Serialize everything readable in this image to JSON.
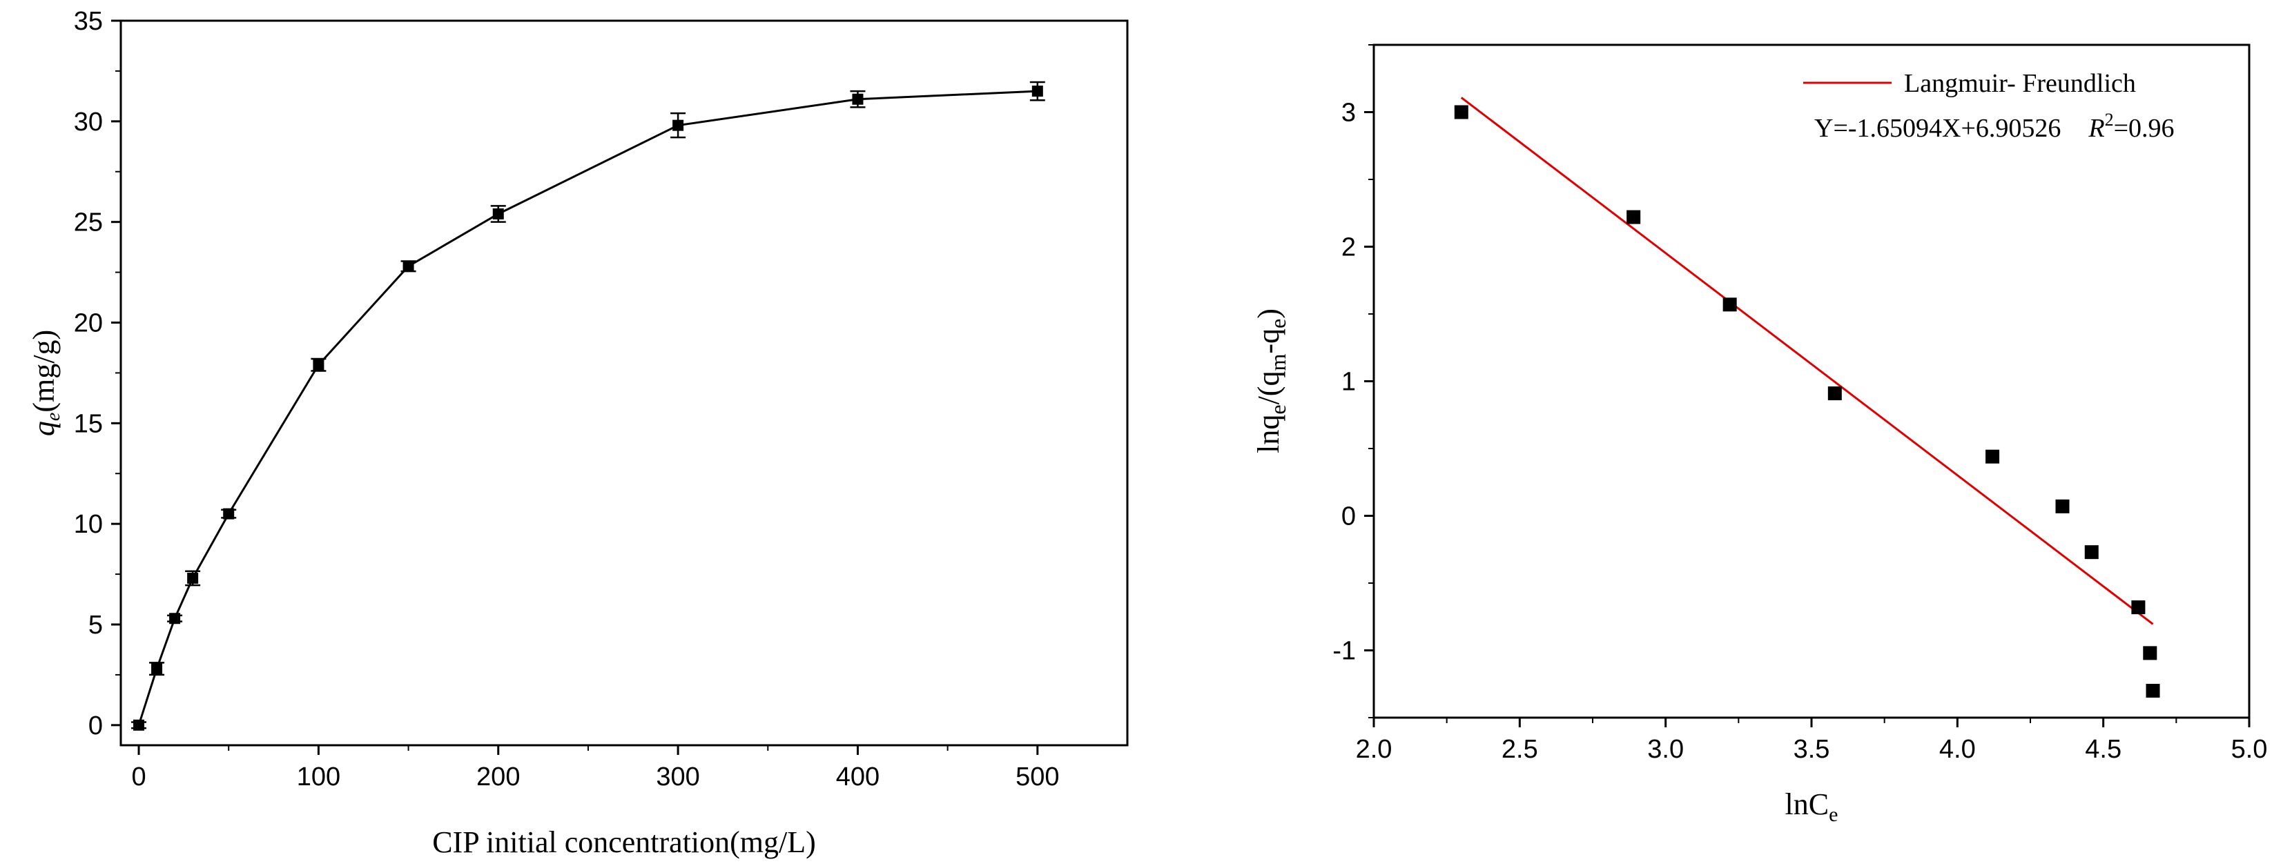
{
  "chart_data": [
    {
      "type": "line",
      "title": "",
      "xlabel": "CIP initial  concentration(mg/L)",
      "ylabel": "(mg/g)",
      "ylabel_symbol": "q",
      "ylabel_sub": "e",
      "xlim": [
        -10,
        550
      ],
      "ylim": [
        -1,
        35
      ],
      "xticks": [
        0,
        100,
        200,
        300,
        400,
        500
      ],
      "yticks": [
        0,
        5,
        10,
        15,
        20,
        25,
        30,
        35
      ],
      "series": [
        {
          "x": [
            0,
            10,
            20,
            30,
            50,
            100,
            150,
            200,
            300,
            400,
            500
          ],
          "y": [
            0,
            2.8,
            5.3,
            7.3,
            10.5,
            17.9,
            22.8,
            25.4,
            29.8,
            31.1,
            31.5
          ],
          "err": [
            0.15,
            0.3,
            0.15,
            0.35,
            0.2,
            0.3,
            0.25,
            0.4,
            0.6,
            0.4,
            0.45
          ]
        }
      ],
      "marker": "square",
      "color": "#000000",
      "grid": false
    },
    {
      "type": "scatter",
      "title": "",
      "xlabel": "lnC",
      "xlabel_sub": "e",
      "ylabel_parts": [
        {
          "t": "lnq",
          "sub": false
        },
        {
          "t": "e",
          "sub": true
        },
        {
          "t": "/(q",
          "sub": false
        },
        {
          "t": "m",
          "sub": true
        },
        {
          "t": "-q",
          "sub": false
        },
        {
          "t": "e",
          "sub": true
        },
        {
          "t": ")",
          "sub": false
        }
      ],
      "xlim": [
        2.0,
        5.0
      ],
      "ylim": [
        -1.5,
        3.5
      ],
      "xticks": [
        "2.0",
        "2.5",
        "3.0",
        "3.5",
        "4.0",
        "4.5",
        "5.0"
      ],
      "yticks": [
        "-1",
        "0",
        "1",
        "2",
        "3"
      ],
      "series": [
        {
          "x": [
            2.3,
            2.89,
            3.22,
            3.58,
            4.12,
            4.36,
            4.46,
            4.62,
            4.66,
            4.67
          ],
          "y": [
            3.0,
            2.22,
            1.57,
            0.91,
            0.44,
            0.07,
            -0.27,
            -0.68,
            -1.02,
            -1.3
          ]
        }
      ],
      "fit": {
        "name": "Langmuir- Freundlich",
        "slope": -1.65094,
        "intercept": 6.90526,
        "x_range": [
          2.3,
          4.67
        ],
        "color": "#e00000"
      },
      "equation_text": "Y=-1.65094X+6.90526",
      "r2_symbol": "R",
      "r2_sup": "2",
      "r2_value": "=0.96",
      "legend_position": "top-right",
      "marker": "square",
      "color": "#000000",
      "grid": false
    }
  ]
}
